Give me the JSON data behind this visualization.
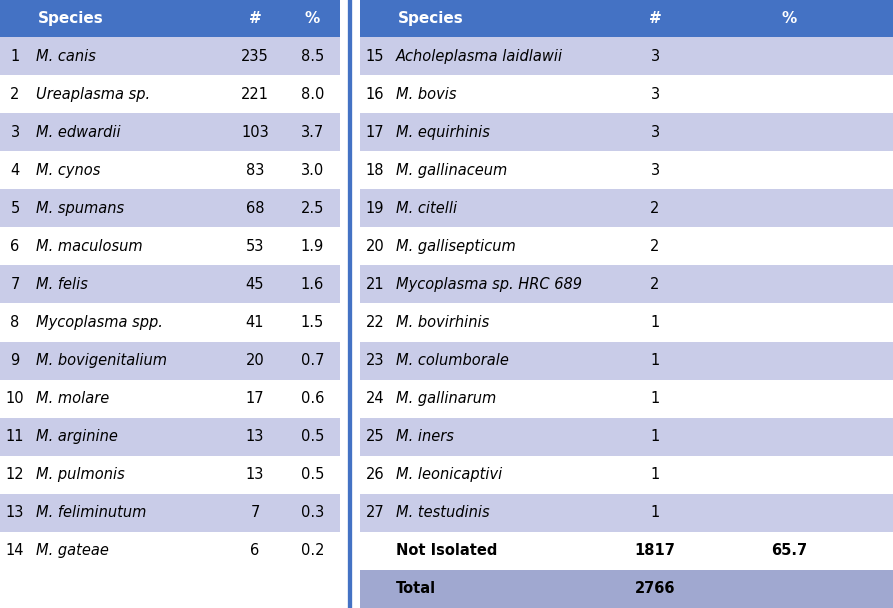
{
  "header_bg": "#4472C4",
  "header_text_color": "#FFFFFF",
  "row_light_bg": "#C9CCE8",
  "row_white_bg": "#FFFFFF",
  "total_row_bg": "#A0A8D0",
  "left_table": {
    "rows": [
      [
        "1",
        "M. canis",
        "235",
        "8.5"
      ],
      [
        "2",
        "Ureaplasma sp.",
        "221",
        "8.0"
      ],
      [
        "3",
        "M. edwardii",
        "103",
        "3.7"
      ],
      [
        "4",
        "M. cynos",
        "83",
        "3.0"
      ],
      [
        "5",
        "M. spumans",
        "68",
        "2.5"
      ],
      [
        "6",
        "M. maculosum",
        "53",
        "1.9"
      ],
      [
        "7",
        "M. felis",
        "45",
        "1.6"
      ],
      [
        "8",
        "Mycoplasma spp.",
        "41",
        "1.5"
      ],
      [
        "9",
        "M. bovigenitalium",
        "20",
        "0.7"
      ],
      [
        "10",
        "M. molare",
        "17",
        "0.6"
      ],
      [
        "11",
        "M. arginine",
        "13",
        "0.5"
      ],
      [
        "12",
        "M. pulmonis",
        "13",
        "0.5"
      ],
      [
        "13",
        "M. feliminutum",
        "7",
        "0.3"
      ],
      [
        "14",
        "M. gateae",
        "6",
        "0.2"
      ]
    ],
    "italic": [
      true,
      true,
      true,
      true,
      true,
      true,
      true,
      true,
      true,
      true,
      true,
      true,
      true,
      true
    ]
  },
  "right_table": {
    "rows": [
      [
        "15",
        "Acholeplasma laidlawii",
        "3",
        ""
      ],
      [
        "16",
        "M. bovis",
        "3",
        ""
      ],
      [
        "17",
        "M. equirhinis",
        "3",
        ""
      ],
      [
        "18",
        "M. gallinaceum",
        "3",
        ""
      ],
      [
        "19",
        "M. citelli",
        "2",
        ""
      ],
      [
        "20",
        "M. gallisepticum",
        "2",
        ""
      ],
      [
        "21",
        "Mycoplasma sp. HRC 689",
        "2",
        ""
      ],
      [
        "22",
        "M. bovirhinis",
        "1",
        ""
      ],
      [
        "23",
        "M. columborale",
        "1",
        ""
      ],
      [
        "24",
        "M. gallinarum",
        "1",
        ""
      ],
      [
        "25",
        "M. iners",
        "1",
        ""
      ],
      [
        "26",
        "M. leonicaptivi",
        "1",
        ""
      ],
      [
        "27",
        "M. testudinis",
        "1",
        ""
      ],
      [
        "",
        "Not Isolated",
        "1817",
        "65.7"
      ],
      [
        "",
        "Total",
        "2766",
        ""
      ]
    ],
    "italic": [
      true,
      true,
      true,
      true,
      true,
      true,
      true,
      true,
      true,
      true,
      true,
      true,
      true,
      false,
      false
    ],
    "bold_rows": [
      13,
      14
    ]
  }
}
